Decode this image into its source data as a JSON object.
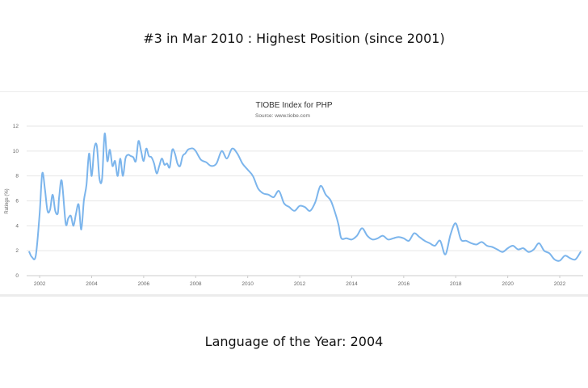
{
  "page": {
    "top_heading": "#3 in Mar 2010 : Highest Position (since 2001)",
    "bottom_heading": "Language of the Year: 2004"
  },
  "colors": {
    "line": "#7cb5ec",
    "grid": "#e6e6e6",
    "tick_text": "#666666",
    "title_text": "#333333"
  },
  "chart_data": {
    "type": "line",
    "title": "TIOBE Index for PHP",
    "subtitle": "Source: www.tiobe.com",
    "xlabel": "",
    "ylabel": "Ratings (%)",
    "xlim": [
      2001.5,
      2022.9
    ],
    "ylim": [
      0,
      12
    ],
    "x_ticks": [
      2002,
      2004,
      2006,
      2008,
      2010,
      2012,
      2014,
      2016,
      2018,
      2020,
      2022
    ],
    "y_ticks": [
      0,
      2,
      4,
      6,
      8,
      10,
      12
    ],
    "grid": true,
    "legend": "none",
    "series": [
      {
        "x": [
          2001.6,
          2001.7,
          2001.85,
          2002.0,
          2002.1,
          2002.2,
          2002.3,
          2002.4,
          2002.5,
          2002.6,
          2002.7,
          2002.75,
          2002.85,
          2003.0,
          2003.1,
          2003.2,
          2003.3,
          2003.4,
          2003.5,
          2003.6,
          2003.7,
          2003.8,
          2003.9,
          2004.0,
          2004.1,
          2004.2,
          2004.3,
          2004.4,
          2004.5,
          2004.6,
          2004.7,
          2004.8,
          2004.9,
          2005.0,
          2005.1,
          2005.2,
          2005.3,
          2005.4,
          2005.5,
          2005.6,
          2005.7,
          2005.8,
          2005.9,
          2006.0,
          2006.1,
          2006.2,
          2006.3,
          2006.4,
          2006.5,
          2006.6,
          2006.7,
          2006.8,
          2006.9,
          2007.0,
          2007.1,
          2007.2,
          2007.3,
          2007.4,
          2007.5,
          2007.6,
          2007.7,
          2007.8,
          2007.9,
          2008.0,
          2008.2,
          2008.4,
          2008.6,
          2008.8,
          2009.0,
          2009.2,
          2009.4,
          2009.6,
          2009.8,
          2010.0,
          2010.2,
          2010.4,
          2010.6,
          2010.8,
          2011.0,
          2011.2,
          2011.4,
          2011.6,
          2011.8,
          2012.0,
          2012.2,
          2012.4,
          2012.6,
          2012.8,
          2013.0,
          2013.2,
          2013.4,
          2013.5,
          2013.6,
          2013.8,
          2014.0,
          2014.2,
          2014.4,
          2014.6,
          2014.8,
          2015.0,
          2015.2,
          2015.4,
          2015.6,
          2015.8,
          2016.0,
          2016.2,
          2016.4,
          2016.6,
          2016.8,
          2017.0,
          2017.2,
          2017.4,
          2017.6,
          2017.8,
          2018.0,
          2018.2,
          2018.4,
          2018.6,
          2018.8,
          2019.0,
          2019.2,
          2019.4,
          2019.6,
          2019.8,
          2020.0,
          2020.2,
          2020.4,
          2020.6,
          2020.8,
          2021.0,
          2021.2,
          2021.4,
          2021.6,
          2021.8,
          2022.0,
          2022.2,
          2022.4,
          2022.6,
          2022.8
        ],
        "y": [
          1.9,
          1.5,
          1.6,
          5.0,
          8.2,
          7.0,
          5.2,
          5.3,
          6.5,
          5.2,
          5.0,
          6.3,
          7.6,
          4.2,
          4.6,
          4.8,
          4.0,
          5.0,
          5.7,
          3.7,
          6.0,
          7.3,
          9.8,
          8.0,
          10.2,
          10.4,
          7.8,
          7.8,
          11.4,
          9.2,
          10.1,
          8.8,
          9.2,
          8.0,
          9.4,
          8.0,
          9.4,
          9.7,
          9.6,
          9.5,
          9.2,
          10.8,
          10.0,
          9.2,
          10.2,
          9.6,
          9.5,
          9.0,
          8.2,
          8.8,
          9.4,
          8.9,
          9.0,
          8.7,
          10.1,
          9.8,
          9.0,
          8.8,
          9.6,
          9.8,
          10.1,
          10.2,
          10.2,
          10.0,
          9.3,
          9.1,
          8.8,
          9.0,
          10.0,
          9.4,
          10.2,
          9.8,
          9.0,
          8.5,
          8.0,
          7.0,
          6.6,
          6.5,
          6.3,
          6.8,
          5.8,
          5.5,
          5.2,
          5.6,
          5.5,
          5.2,
          5.9,
          7.2,
          6.5,
          6.0,
          4.8,
          4.0,
          3.0,
          3.0,
          2.9,
          3.2,
          3.8,
          3.2,
          2.9,
          3.0,
          3.2,
          2.9,
          3.0,
          3.1,
          3.0,
          2.8,
          3.4,
          3.1,
          2.8,
          2.6,
          2.4,
          2.8,
          1.7,
          3.3,
          4.2,
          2.9,
          2.8,
          2.6,
          2.5,
          2.7,
          2.4,
          2.3,
          2.1,
          1.9,
          2.2,
          2.4,
          2.1,
          2.2,
          1.9,
          2.1,
          2.6,
          2.0,
          1.8,
          1.3,
          1.2,
          1.6,
          1.4,
          1.3,
          1.9
        ]
      }
    ]
  }
}
